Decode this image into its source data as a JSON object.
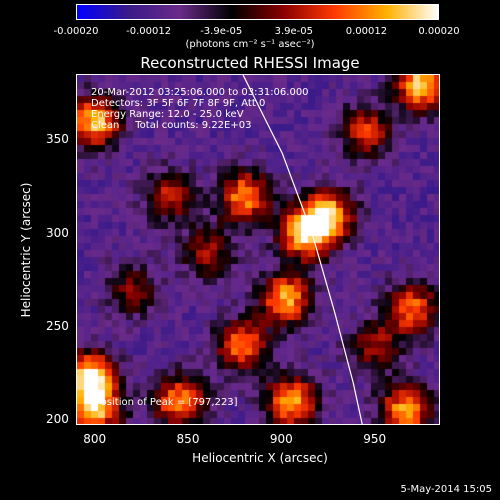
{
  "chart_data": {
    "type": "heatmap",
    "title": "Reconstructed RHESSI Image",
    "xlabel": "Heliocentric X (arcsec)",
    "ylabel": "Heliocentric Y (arcsec)",
    "xlim": [
      790,
      985
    ],
    "ylim": [
      197,
      385
    ],
    "x_ticks": [
      "800",
      "850",
      "900",
      "950"
    ],
    "y_ticks": [
      "200",
      "250",
      "300",
      "350"
    ],
    "colorbar": {
      "range": [
        -0.0002,
        0.0002
      ],
      "tick_labels": [
        "-0.00020",
        "-0.00012",
        "-3.9e-05",
        "3.9e-05",
        "0.00012",
        "0.00020"
      ],
      "units": "(photons cm⁻² s⁻¹ asec⁻²)",
      "colors": [
        "#0000ff",
        "#3a1a8a",
        "#6a2a8a",
        "#000000",
        "#8a0000",
        "#ff3a00",
        "#ffb000",
        "#ffffff"
      ]
    },
    "annotations": {
      "time_range": "20-Mar-2012 03:25:06.000 to 03:31:06.000",
      "detectors": "Detectors: 3F 5F 6F 7F 8F 9F, Att 0",
      "energy": "Energy Range: 12.0 - 25.0 keV",
      "clean": "Clean     Total counts: 9.22E+03",
      "peak": "Position of Peak = [797,223]"
    },
    "hot_spots": [
      {
        "x": 912,
        "y": 300,
        "strength": 0.9
      },
      {
        "x": 902,
        "y": 265,
        "strength": 0.85
      },
      {
        "x": 925,
        "y": 310,
        "strength": 0.85
      },
      {
        "x": 880,
        "y": 320,
        "strength": 0.8
      },
      {
        "x": 797,
        "y": 223,
        "strength": 1.0
      },
      {
        "x": 800,
        "y": 205,
        "strength": 0.8
      },
      {
        "x": 800,
        "y": 360,
        "strength": 0.9
      },
      {
        "x": 966,
        "y": 205,
        "strength": 0.85
      },
      {
        "x": 975,
        "y": 380,
        "strength": 0.95
      },
      {
        "x": 905,
        "y": 210,
        "strength": 0.85
      },
      {
        "x": 878,
        "y": 240,
        "strength": 0.75
      },
      {
        "x": 845,
        "y": 210,
        "strength": 0.8
      },
      {
        "x": 840,
        "y": 320,
        "strength": 0.55
      },
      {
        "x": 970,
        "y": 260,
        "strength": 0.7
      },
      {
        "x": 945,
        "y": 355,
        "strength": 0.6
      },
      {
        "x": 820,
        "y": 270,
        "strength": 0.45
      },
      {
        "x": 950,
        "y": 240,
        "strength": 0.5
      },
      {
        "x": 860,
        "y": 290,
        "strength": 0.5
      }
    ],
    "limb_curve": [
      {
        "x": 879,
        "y": 385
      },
      {
        "x": 900,
        "y": 343
      },
      {
        "x": 916,
        "y": 300
      },
      {
        "x": 928,
        "y": 258
      },
      {
        "x": 938,
        "y": 220
      },
      {
        "x": 943,
        "y": 197
      }
    ]
  },
  "footer": {
    "datestamp": "5-May-2014 15:05"
  }
}
